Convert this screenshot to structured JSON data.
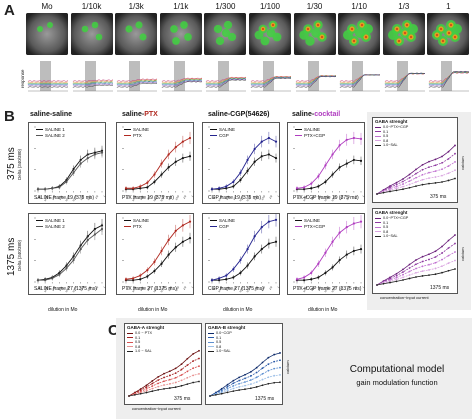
{
  "panel_letters": [
    "A",
    "B",
    "C"
  ],
  "panel_a": {
    "dilutions": [
      "Mo",
      "1/10k",
      "1/3k",
      "1/1k",
      "1/300",
      "1/100",
      "1/30",
      "1/10",
      "1/3",
      "1"
    ],
    "trace_axis_label": "time (s)",
    "trace_y_label": "response"
  },
  "panel_b": {
    "column_titles": [
      {
        "prefix": "saline-saline",
        "suffix": "",
        "suffix_color": "#111111"
      },
      {
        "prefix": "saline-",
        "suffix": "PTX",
        "suffix_color": "#b0281f"
      },
      {
        "prefix": "saline-CGP(54626)",
        "suffix": "",
        "suffix_color": "#111111"
      },
      {
        "prefix": "saline-",
        "suffix": "cocktail",
        "suffix_color": "#b03cc0"
      }
    ],
    "row_labels": [
      "375 ms",
      "1375 ms"
    ],
    "y_label": "Delta (340/380)",
    "x_label": "dilution in Mo",
    "top_row": [
      {
        "legend": [
          "SALINE 1",
          "SALINE 2"
        ],
        "caption": "SALINE frame 19 (375 ms)"
      },
      {
        "legend": [
          "SALINE",
          "PTX"
        ],
        "caption": "PTX frame 19 (375 ms)"
      },
      {
        "legend": [
          "SALINE",
          "CGP"
        ],
        "caption": "CGP frame 19 (375 ms)"
      },
      {
        "legend": [
          "SALINE",
          "PTX+CGP"
        ],
        "caption": "PTX+CGP frame 19 (375 ms)"
      }
    ],
    "bottom_row": [
      {
        "legend": [
          "SALINE 1",
          "SALINE 2"
        ],
        "caption": "SALINE frame 27 (1375 ms)"
      },
      {
        "legend": [
          "SALINE",
          "PTX"
        ],
        "caption": "PTX frame 27 (1375 ms)"
      },
      {
        "legend": [
          "SALINE",
          "CGP"
        ],
        "caption": "CGP frame 27 (1375 ms)"
      },
      {
        "legend": [
          "SALINE",
          "PTX+CGP"
        ],
        "caption": "PTX+CGP frame 27 (1375 ms)"
      }
    ],
    "model_panels": [
      {
        "title": "GABA strenght",
        "legend": [
          "0.0~PTX+CGP",
          "0.1",
          "0.5",
          "0.8",
          "1.0~SAL"
        ],
        "time": "375 ms"
      },
      {
        "title": "GABA strenght",
        "legend": [
          "0.0~PTX+CGP",
          "0.1",
          "0.5",
          "0.8",
          "1.0~SAL"
        ],
        "time": "1375 ms"
      }
    ],
    "model_x_label": "concentration~input current",
    "model_y_label": "calcium"
  },
  "panel_c": {
    "plots": [
      {
        "title": "GABA-A strenght",
        "legend": [
          "0.0 ~ PTX",
          "0.1",
          "0.5",
          "0.8",
          "1.0 ~ SAL"
        ],
        "time": "375 ms"
      },
      {
        "title": "GABA-B strenght",
        "legend": [
          "0.0~CGP",
          "0.1",
          "0.5",
          "0.8",
          "1.0~SAL"
        ],
        "time": "1375 ms"
      }
    ],
    "x_label": "concentration~input current",
    "y_label": "calcium",
    "caption_title": "Computational model",
    "caption_sub": "gain modulation function"
  },
  "chart_data": [
    {
      "type": "line",
      "title": "SALINE frame 19 (375 ms)",
      "xlabel": "dilution in Mo",
      "ylabel": "Delta (340/380)",
      "categories": [
        "Mo",
        "1/10k",
        "1/3k",
        "1/1k",
        "1/300",
        "1/100",
        "1/30",
        "1/10",
        "1/3",
        "1"
      ],
      "series": [
        {
          "name": "SALINE 1",
          "color": "#111111",
          "values": [
            0.02,
            0.02,
            0.03,
            0.05,
            0.12,
            0.24,
            0.34,
            0.4,
            0.42,
            0.44
          ]
        },
        {
          "name": "SALINE 2",
          "color": "#555555",
          "values": [
            0.02,
            0.02,
            0.03,
            0.04,
            0.1,
            0.2,
            0.3,
            0.36,
            0.4,
            0.42
          ]
        }
      ]
    },
    {
      "type": "line",
      "title": "PTX frame 19 (375 ms)",
      "xlabel": "dilution in Mo",
      "categories": [
        "Mo",
        "1/10k",
        "1/3k",
        "1/1k",
        "1/300",
        "1/100",
        "1/30",
        "1/10",
        "1/3",
        "1"
      ],
      "series": [
        {
          "name": "SALINE",
          "color": "#111111",
          "values": [
            0.02,
            0.02,
            0.03,
            0.04,
            0.1,
            0.18,
            0.26,
            0.32,
            0.36,
            0.38
          ]
        },
        {
          "name": "PTX",
          "color": "#b0281f",
          "values": [
            0.03,
            0.03,
            0.05,
            0.09,
            0.18,
            0.3,
            0.4,
            0.48,
            0.54,
            0.58
          ]
        }
      ]
    },
    {
      "type": "line",
      "title": "CGP frame 19 (375 ms)",
      "xlabel": "dilution in Mo",
      "categories": [
        "Mo",
        "1/10k",
        "1/3k",
        "1/1k",
        "1/300",
        "1/100",
        "1/30",
        "1/10",
        "1/3",
        "1"
      ],
      "series": [
        {
          "name": "SALINE",
          "color": "#111111",
          "values": [
            0.02,
            0.02,
            0.03,
            0.05,
            0.12,
            0.22,
            0.32,
            0.38,
            0.4,
            0.36
          ]
        },
        {
          "name": "CGP",
          "color": "#24248f",
          "values": [
            0.02,
            0.03,
            0.05,
            0.1,
            0.2,
            0.34,
            0.46,
            0.54,
            0.58,
            0.54
          ]
        }
      ]
    },
    {
      "type": "line",
      "title": "PTX+CGP frame 19 (375 ms)",
      "xlabel": "dilution in Mo",
      "categories": [
        "Mo",
        "1/10k",
        "1/3k",
        "1/1k",
        "1/300",
        "1/100",
        "1/30",
        "1/10",
        "1/3",
        "1"
      ],
      "series": [
        {
          "name": "SALINE",
          "color": "#111111",
          "values": [
            0.02,
            0.02,
            0.03,
            0.05,
            0.1,
            0.18,
            0.26,
            0.3,
            0.34,
            0.33
          ]
        },
        {
          "name": "PTX+CGP",
          "color": "#b03cc0",
          "values": [
            0.03,
            0.04,
            0.08,
            0.16,
            0.28,
            0.4,
            0.5,
            0.56,
            0.58,
            0.57
          ]
        }
      ]
    },
    {
      "type": "line",
      "title": "SALINE frame 27 (1375 ms)",
      "xlabel": "dilution in Mo",
      "ylabel": "Delta (340/380)",
      "categories": [
        "Mo",
        "1/10k",
        "1/3k",
        "1/1k",
        "1/300",
        "1/100",
        "1/30",
        "1/10",
        "1/3",
        "1"
      ],
      "series": [
        {
          "name": "SALINE 1",
          "color": "#111111",
          "values": [
            0.02,
            0.03,
            0.05,
            0.1,
            0.18,
            0.28,
            0.4,
            0.5,
            0.58,
            0.62
          ]
        },
        {
          "name": "SALINE 2",
          "color": "#555555",
          "values": [
            0.02,
            0.02,
            0.04,
            0.08,
            0.15,
            0.24,
            0.36,
            0.46,
            0.52,
            0.58
          ]
        }
      ]
    },
    {
      "type": "line",
      "title": "PTX frame 27 (1375 ms)",
      "xlabel": "dilution in Mo",
      "categories": [
        "Mo",
        "1/10k",
        "1/3k",
        "1/1k",
        "1/300",
        "1/100",
        "1/30",
        "1/10",
        "1/3",
        "1"
      ],
      "series": [
        {
          "name": "SALINE",
          "color": "#111111",
          "values": [
            0.02,
            0.02,
            0.03,
            0.06,
            0.12,
            0.2,
            0.3,
            0.38,
            0.44,
            0.48
          ]
        },
        {
          "name": "PTX",
          "color": "#b0281f",
          "values": [
            0.03,
            0.04,
            0.07,
            0.13,
            0.22,
            0.34,
            0.46,
            0.56,
            0.62,
            0.66
          ]
        }
      ]
    },
    {
      "type": "line",
      "title": "CGP frame 27 (1375 ms)",
      "xlabel": "dilution in Mo",
      "categories": [
        "Mo",
        "1/10k",
        "1/3k",
        "1/1k",
        "1/300",
        "1/100",
        "1/30",
        "1/10",
        "1/3",
        "1"
      ],
      "series": [
        {
          "name": "SALINE",
          "color": "#111111",
          "values": [
            0.02,
            0.02,
            0.03,
            0.05,
            0.1,
            0.18,
            0.28,
            0.36,
            0.42,
            0.44
          ]
        },
        {
          "name": "CGP",
          "color": "#24248f",
          "values": [
            0.02,
            0.04,
            0.07,
            0.14,
            0.24,
            0.36,
            0.5,
            0.6,
            0.66,
            0.68
          ]
        }
      ]
    },
    {
      "type": "line",
      "title": "PTX+CGP frame 27 (1375 ms)",
      "xlabel": "dilution in Mo",
      "categories": [
        "Mo",
        "1/10k",
        "1/3k",
        "1/1k",
        "1/300",
        "1/100",
        "1/30",
        "1/10",
        "1/3",
        "1"
      ],
      "series": [
        {
          "name": "SALINE",
          "color": "#111111",
          "values": [
            0.02,
            0.02,
            0.03,
            0.05,
            0.1,
            0.16,
            0.24,
            0.3,
            0.34,
            0.36
          ]
        },
        {
          "name": "PTX+CGP",
          "color": "#b03cc0",
          "values": [
            0.03,
            0.05,
            0.1,
            0.2,
            0.32,
            0.44,
            0.54,
            0.6,
            0.64,
            0.66
          ]
        }
      ]
    }
  ]
}
